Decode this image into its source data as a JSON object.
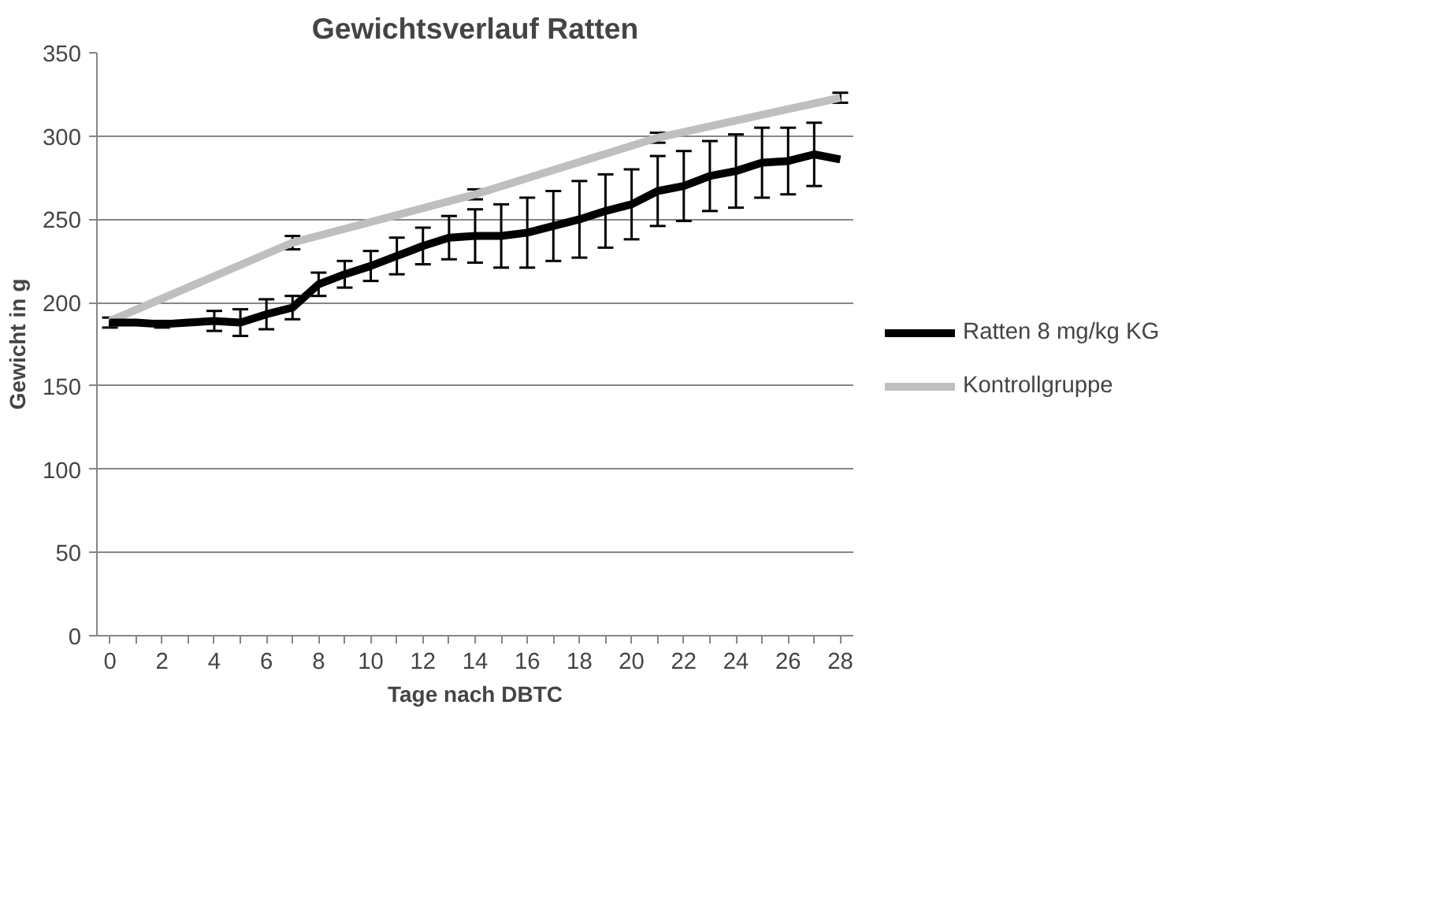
{
  "chart_data": {
    "type": "line",
    "title": "Gewichtsverlauf Ratten",
    "xlabel": "Tage nach DBTC",
    "ylabel": "Gewicht in g",
    "x": [
      0,
      1,
      2,
      3,
      4,
      5,
      6,
      7,
      8,
      9,
      10,
      11,
      12,
      13,
      14,
      15,
      16,
      17,
      18,
      19,
      20,
      21,
      22,
      23,
      24,
      25,
      26,
      27,
      28
    ],
    "series": [
      {
        "name": "Ratten 8 mg/kg KG",
        "color": "#000000",
        "values": [
          188,
          188,
          187,
          188,
          189,
          188,
          193,
          197,
          211,
          217,
          222,
          228,
          234,
          239,
          240,
          240,
          242,
          246,
          250,
          255,
          259,
          267,
          270,
          276,
          279,
          284,
          285,
          289,
          286
        ],
        "errors": [
          3,
          null,
          2,
          null,
          6,
          8,
          9,
          7,
          7,
          8,
          9,
          11,
          11,
          13,
          16,
          19,
          21,
          21,
          23,
          22,
          21,
          21,
          21,
          21,
          22,
          21,
          20,
          19,
          null
        ]
      },
      {
        "name": "Kontrollgruppe",
        "color": "#bfbfbf",
        "x": [
          0,
          7,
          14,
          21,
          28
        ],
        "values": [
          189,
          236,
          265,
          299,
          323
        ],
        "errors": [
          null,
          4,
          3,
          3,
          3
        ]
      }
    ],
    "xlim": [
      -0.5,
      28.5
    ],
    "xticks": [
      0,
      {
        "value": 1,
        "label": null
      },
      2,
      {
        "value": 3,
        "label": null
      },
      4,
      {
        "value": 5,
        "label": null
      },
      6,
      {
        "value": 7,
        "label": null
      },
      8,
      {
        "value": 9,
        "label": null
      },
      10,
      {
        "value": 11,
        "label": null
      },
      12,
      {
        "value": 13,
        "label": null
      },
      14,
      {
        "value": 15,
        "label": null
      },
      16,
      {
        "value": 17,
        "label": null
      },
      18,
      {
        "value": 19,
        "label": null
      },
      20,
      {
        "value": 21,
        "label": null
      },
      22,
      {
        "value": 23,
        "label": null
      },
      24,
      {
        "value": 25,
        "label": null
      },
      26,
      {
        "value": 27,
        "label": null
      },
      28
    ],
    "ylim": [
      0,
      350
    ],
    "yticks": [
      0,
      50,
      100,
      150,
      200,
      250,
      300,
      350
    ],
    "grid": "y",
    "legend": "right",
    "marker": "none",
    "line_style": "solid"
  }
}
